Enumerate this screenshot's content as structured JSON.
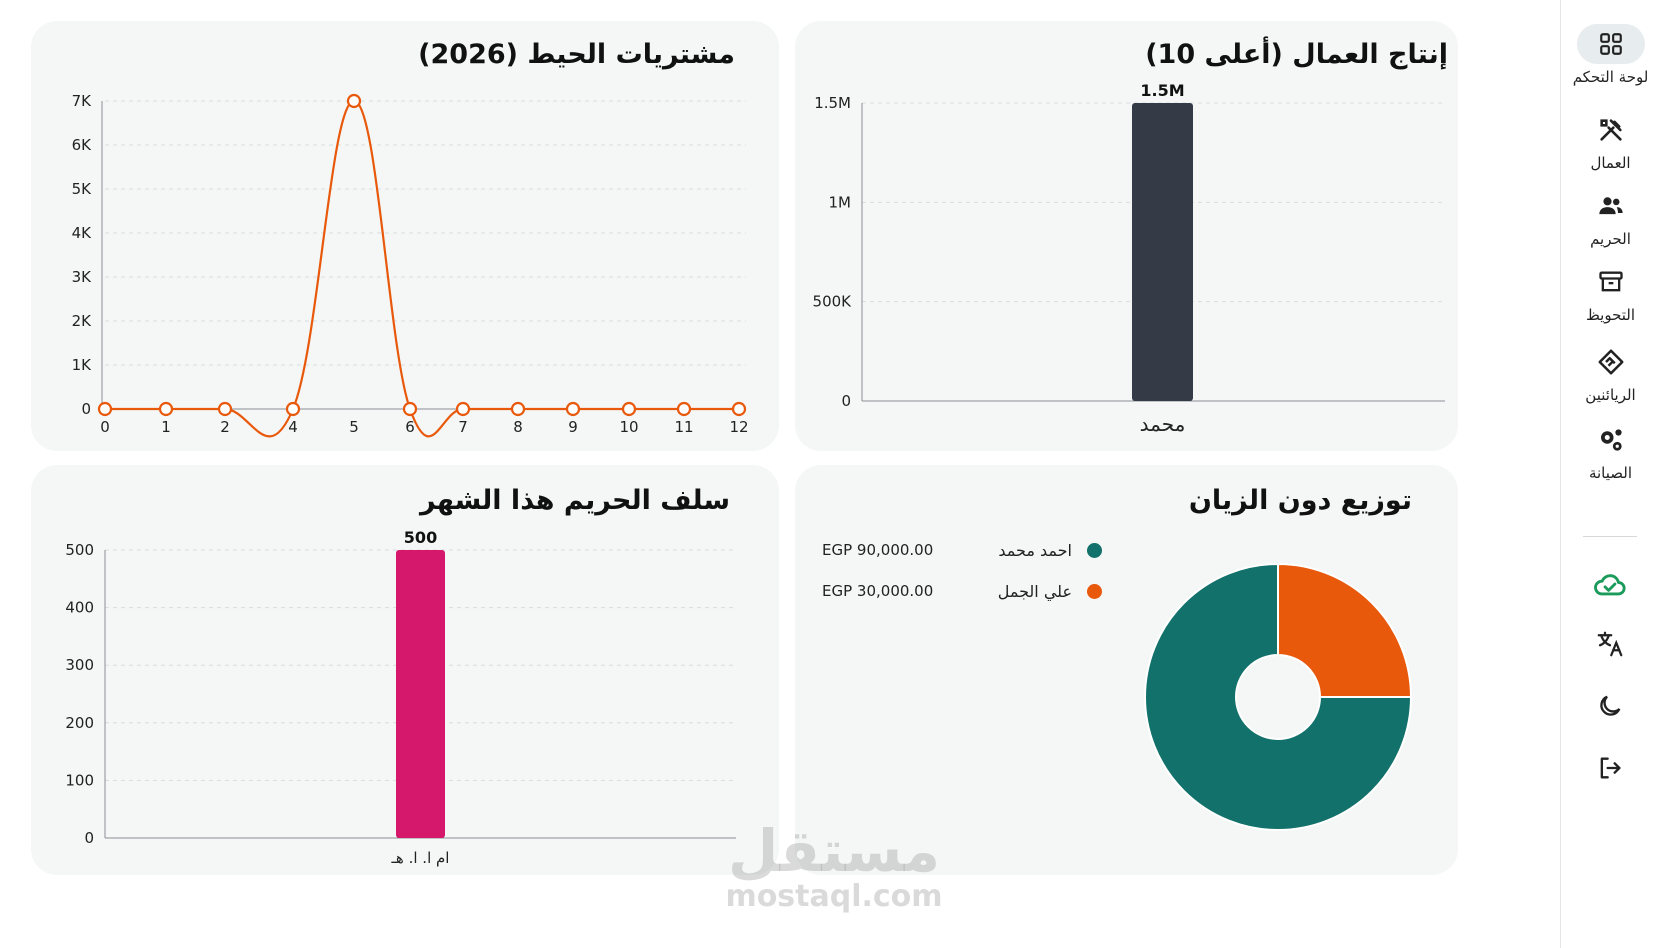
{
  "sidebar": {
    "items": [
      {
        "label": "لوحة التحكم",
        "icon": "dashboard-grid-icon",
        "active": true
      },
      {
        "label": "العمال",
        "icon": "tools-icon",
        "active": false
      },
      {
        "label": "الحريم",
        "icon": "users-icon",
        "active": false
      },
      {
        "label": "التحويظ",
        "icon": "archive-box-icon",
        "active": false
      },
      {
        "label": "الريائنين",
        "icon": "handshake-icon",
        "active": false
      },
      {
        "label": "الصيانة",
        "icon": "gears-icon",
        "active": false
      }
    ],
    "utilities": [
      {
        "icon": "cloud-check-icon",
        "color": "#1a9a5b"
      },
      {
        "icon": "translate-icon"
      },
      {
        "icon": "moon-icon"
      },
      {
        "icon": "logout-icon"
      }
    ]
  },
  "cards": {
    "thread_purchases": {
      "title": "مشتريات الحيط (2026)"
    },
    "worker_production": {
      "title": "إنتاج العمال (أعلى 10)"
    },
    "women_advances": {
      "title": "سلف الحريم هذا الشهر"
    },
    "debt_distribution": {
      "title": "توزيع دون الزيان"
    }
  },
  "legend": [
    {
      "name": "احمد محمد",
      "value": "EGP 90,000.00",
      "color": "#12716a"
    },
    {
      "name": "علي الجمل",
      "value": "EGP 30,000.00",
      "color": "#e8590c"
    }
  ],
  "watermark": {
    "arabic": "مستقل",
    "latin": "mostaql.com"
  },
  "chart_data": [
    {
      "type": "line",
      "title": "مشتريات الحيط (2026)",
      "x": [
        0,
        1,
        2,
        4,
        5,
        6,
        7,
        8,
        9,
        10,
        11,
        12
      ],
      "x_tick_labels": [
        "0",
        "1",
        "2",
        "4",
        "5",
        "6",
        "7",
        "8",
        "9",
        "10",
        "11",
        "12"
      ],
      "y_tick_labels": [
        "0",
        "1K",
        "2K",
        "3K",
        "4K",
        "5K",
        "6K",
        "7K"
      ],
      "ylim": [
        0,
        7000
      ],
      "series": [
        {
          "values": [
            0,
            0,
            0,
            0,
            7000,
            0,
            0,
            0,
            0,
            0,
            0,
            0
          ],
          "color": "#e8590c"
        }
      ],
      "grid": true
    },
    {
      "type": "bar",
      "title": "إنتاج العمال (أعلى 10)",
      "categories": [
        "محمد"
      ],
      "values": [
        1500000
      ],
      "data_labels": [
        "1.5M"
      ],
      "y_tick_labels": [
        "0",
        "500K",
        "1M",
        "1.5M"
      ],
      "ylim": [
        0,
        1500000
      ],
      "color": "#343a46",
      "grid": true
    },
    {
      "type": "bar",
      "title": "سلف الحريم هذا الشهر",
      "categories": [
        "ام ا. ا. هـ"
      ],
      "values": [
        500
      ],
      "data_labels": [
        "500"
      ],
      "y_tick_labels": [
        "0",
        "100",
        "200",
        "300",
        "400",
        "500"
      ],
      "ylim": [
        0,
        500
      ],
      "color": "#d6186c",
      "grid": true
    },
    {
      "type": "pie",
      "title": "توزيع دون الزيان",
      "labels": [
        "احمد محمد",
        "علي الجمل"
      ],
      "values": [
        90000,
        30000
      ],
      "colors": [
        "#12716a",
        "#e8590c"
      ],
      "donut": true
    }
  ]
}
